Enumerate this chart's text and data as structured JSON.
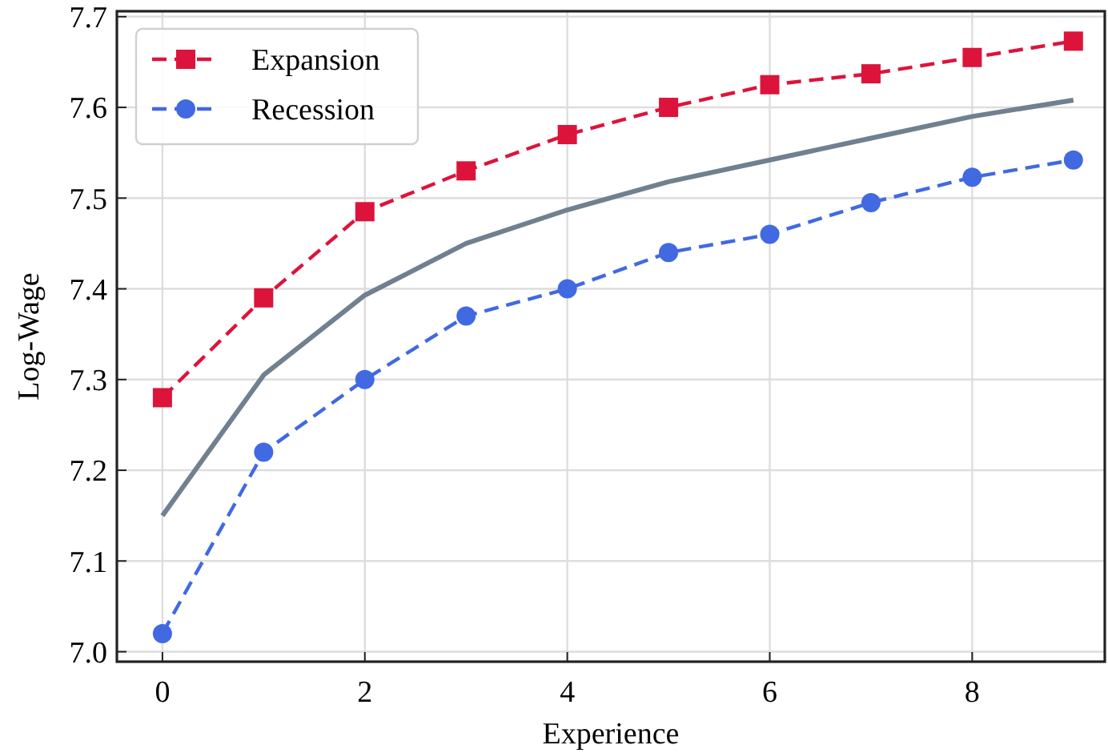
{
  "chart_data": {
    "type": "line",
    "xlabel": "Experience",
    "ylabel": "Log-Wage",
    "x": [
      0,
      1,
      2,
      3,
      4,
      5,
      6,
      7,
      8,
      9
    ],
    "series": [
      {
        "name": "Expansion",
        "color": "#dc143c",
        "marker": "square",
        "line_style": "dashed",
        "values": [
          7.28,
          7.39,
          7.485,
          7.53,
          7.57,
          7.6,
          7.625,
          7.637,
          7.655,
          7.673
        ]
      },
      {
        "name": "Recession",
        "color": "#4169e1",
        "marker": "circle",
        "line_style": "dashed",
        "values": [
          7.02,
          7.22,
          7.3,
          7.37,
          7.4,
          7.44,
          7.46,
          7.495,
          7.523,
          7.542
        ]
      },
      {
        "color": "#708090",
        "marker": "none",
        "line_style": "solid",
        "values": [
          7.15,
          7.305,
          7.393,
          7.45,
          7.487,
          7.518,
          7.542,
          7.566,
          7.59,
          7.608
        ]
      }
    ],
    "xlim": [
      -0.45,
      9.31
    ],
    "ylim": [
      6.989,
      7.706
    ],
    "xticks": [
      0,
      2,
      4,
      6,
      8
    ],
    "yticks": [
      {
        "value": 7.0,
        "label": "7.0"
      },
      {
        "value": 7.1,
        "label": "7.1"
      },
      {
        "value": 7.2,
        "label": "7.2"
      },
      {
        "value": 7.3,
        "label": "7.3"
      },
      {
        "value": 7.4,
        "label": "7.4"
      },
      {
        "value": 7.5,
        "label": "7.5"
      },
      {
        "value": 7.6,
        "label": "7.6"
      },
      {
        "value": 7.7,
        "label": "7.7"
      }
    ],
    "grid": true,
    "legend": "top left"
  }
}
